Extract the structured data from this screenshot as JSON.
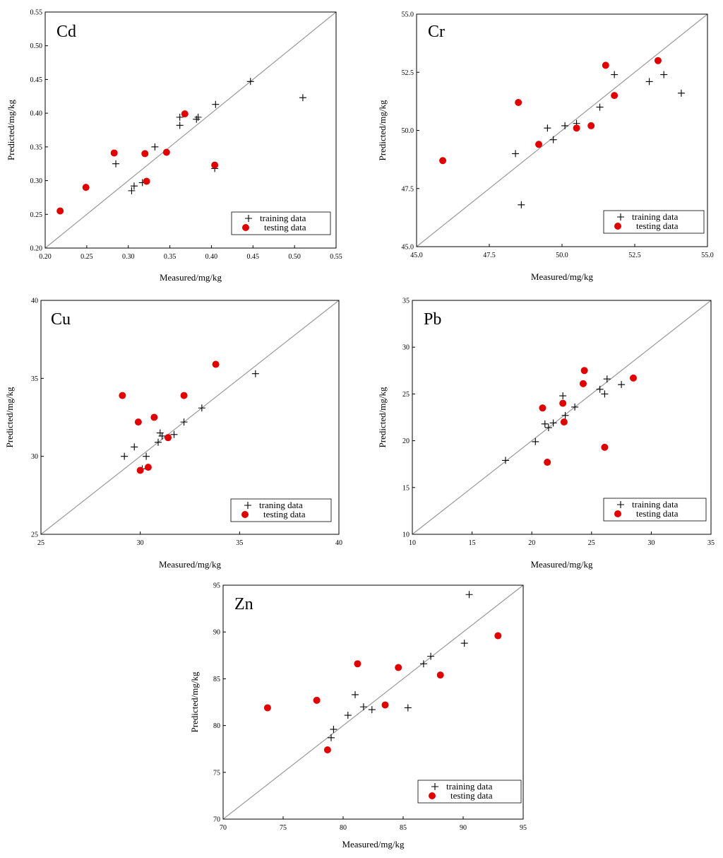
{
  "colors": {
    "testing": "#e00000",
    "training": "#000000",
    "diagonal": "#999999",
    "frame": "#000000"
  },
  "chart_data": [
    {
      "type": "scatter",
      "title": "Cd",
      "xlabel": "Measured/mg/kg",
      "ylabel": "Predicted/mg/kg",
      "xlim": [
        0.2,
        0.55
      ],
      "ylim": [
        0.2,
        0.55
      ],
      "xticks": [
        "0.20",
        "0.25",
        "0.30",
        "0.35",
        "0.40",
        "0.45",
        "0.50",
        "0.55"
      ],
      "yticks": [
        "0.20",
        "0.25",
        "0.30",
        "0.35",
        "0.40",
        "0.45",
        "0.50",
        "0.55"
      ],
      "legend": [
        "training data",
        "testing data"
      ],
      "legend_position": "bottom-right",
      "series": [
        {
          "name": "training data",
          "marker": "plus",
          "points": [
            [
              0.285,
              0.325
            ],
            [
              0.304,
              0.285
            ],
            [
              0.307,
              0.292
            ],
            [
              0.317,
              0.297
            ],
            [
              0.332,
              0.35
            ],
            [
              0.362,
              0.394
            ],
            [
              0.362,
              0.382
            ],
            [
              0.382,
              0.391
            ],
            [
              0.384,
              0.394
            ],
            [
              0.405,
              0.413
            ],
            [
              0.404,
              0.318
            ],
            [
              0.447,
              0.447
            ],
            [
              0.51,
              0.423
            ]
          ]
        },
        {
          "name": "testing data",
          "marker": "circle",
          "points": [
            [
              0.218,
              0.255
            ],
            [
              0.249,
              0.29
            ],
            [
              0.283,
              0.341
            ],
            [
              0.32,
              0.34
            ],
            [
              0.322,
              0.299
            ],
            [
              0.346,
              0.342
            ],
            [
              0.368,
              0.399
            ],
            [
              0.404,
              0.323
            ]
          ]
        }
      ]
    },
    {
      "type": "scatter",
      "title": "Cr",
      "xlabel": "Measured/mg/kg",
      "ylabel": "Predicted/mg/kg",
      "xlim": [
        45,
        55
      ],
      "ylim": [
        45,
        55
      ],
      "xticks": [
        "45.0",
        "47.5",
        "50.0",
        "52.5",
        "55.0"
      ],
      "yticks": [
        "45.0",
        "47.5",
        "50.0",
        "52.5",
        "55.0"
      ],
      "legend": [
        "training data",
        "testing data"
      ],
      "legend_position": "bottom-right",
      "series": [
        {
          "name": "training data",
          "marker": "plus",
          "points": [
            [
              48.4,
              49.0
            ],
            [
              48.6,
              46.8
            ],
            [
              49.5,
              50.1
            ],
            [
              49.7,
              49.6
            ],
            [
              50.1,
              50.2
            ],
            [
              50.5,
              50.3
            ],
            [
              51.3,
              51.0
            ],
            [
              51.8,
              52.4
            ],
            [
              53.0,
              52.1
            ],
            [
              53.5,
              52.4
            ],
            [
              54.1,
              51.6
            ]
          ]
        },
        {
          "name": "testing data",
          "marker": "circle",
          "points": [
            [
              45.9,
              48.7
            ],
            [
              48.5,
              51.2
            ],
            [
              49.2,
              49.4
            ],
            [
              50.5,
              50.1
            ],
            [
              51.0,
              50.2
            ],
            [
              51.5,
              52.8
            ],
            [
              51.8,
              51.5
            ],
            [
              53.3,
              53.0
            ]
          ]
        }
      ]
    },
    {
      "type": "scatter",
      "title": "Cu",
      "xlabel": "Measured/mg/kg",
      "ylabel": "Predicted/mg/kg",
      "xlim": [
        25,
        40
      ],
      "ylim": [
        25,
        40
      ],
      "xticks": [
        "25",
        "30",
        "35",
        "40"
      ],
      "yticks": [
        "25",
        "30",
        "35",
        "40"
      ],
      "legend": [
        "traning data",
        "testing data"
      ],
      "legend_position": "bottom-right",
      "series": [
        {
          "name": "traning data",
          "marker": "plus",
          "points": [
            [
              29.2,
              30.0
            ],
            [
              29.7,
              30.6
            ],
            [
              30.1,
              29.2
            ],
            [
              30.3,
              30.0
            ],
            [
              30.9,
              30.9
            ],
            [
              31.0,
              31.5
            ],
            [
              31.1,
              31.3
            ],
            [
              31.7,
              31.4
            ],
            [
              32.2,
              32.2
            ],
            [
              33.1,
              33.1
            ],
            [
              35.8,
              35.3
            ]
          ]
        },
        {
          "name": "testing data",
          "marker": "circle",
          "points": [
            [
              29.1,
              33.9
            ],
            [
              29.9,
              32.2
            ],
            [
              30.0,
              29.1
            ],
            [
              30.4,
              29.3
            ],
            [
              30.7,
              32.5
            ],
            [
              31.4,
              31.2
            ],
            [
              32.2,
              33.9
            ],
            [
              33.8,
              35.9
            ]
          ]
        }
      ]
    },
    {
      "type": "scatter",
      "title": "Pb",
      "xlabel": "Measured/mg/kg",
      "ylabel": "Predicted/mg/kg",
      "xlim": [
        10,
        35
      ],
      "ylim": [
        10,
        35
      ],
      "xticks": [
        "10",
        "15",
        "20",
        "25",
        "30",
        "35"
      ],
      "yticks": [
        "10",
        "15",
        "20",
        "25",
        "30",
        "35"
      ],
      "legend": [
        "training data",
        "testing data"
      ],
      "legend_position": "bottom-right",
      "series": [
        {
          "name": "training data",
          "marker": "plus",
          "points": [
            [
              17.8,
              17.9
            ],
            [
              20.3,
              19.9
            ],
            [
              21.1,
              21.8
            ],
            [
              21.4,
              21.4
            ],
            [
              21.8,
              21.9
            ],
            [
              22.6,
              24.8
            ],
            [
              22.8,
              22.7
            ],
            [
              23.6,
              23.6
            ],
            [
              25.7,
              25.5
            ],
            [
              26.1,
              25.0
            ],
            [
              26.3,
              26.6
            ],
            [
              27.5,
              26.0
            ]
          ]
        },
        {
          "name": "testing data",
          "marker": "circle",
          "points": [
            [
              20.9,
              23.5
            ],
            [
              21.3,
              17.7
            ],
            [
              22.6,
              24.0
            ],
            [
              22.7,
              22.0
            ],
            [
              24.3,
              26.1
            ],
            [
              24.4,
              27.5
            ],
            [
              26.1,
              19.3
            ],
            [
              28.5,
              26.7
            ]
          ]
        }
      ]
    },
    {
      "type": "scatter",
      "title": "Zn",
      "xlabel": "Measured/mg/kg",
      "ylabel": "Predicted/mg/kg",
      "xlim": [
        70,
        95
      ],
      "ylim": [
        70,
        95
      ],
      "xticks": [
        "70",
        "75",
        "80",
        "85",
        "90",
        "95"
      ],
      "yticks": [
        "70",
        "75",
        "80",
        "85",
        "90",
        "95"
      ],
      "legend": [
        "training data",
        "testing data"
      ],
      "legend_position": "bottom-right",
      "series": [
        {
          "name": "training data",
          "marker": "plus",
          "points": [
            [
              79.0,
              78.7
            ],
            [
              79.2,
              79.6
            ],
            [
              80.4,
              81.1
            ],
            [
              81.0,
              83.3
            ],
            [
              81.7,
              82.0
            ],
            [
              82.4,
              81.7
            ],
            [
              85.4,
              81.9
            ],
            [
              86.7,
              86.6
            ],
            [
              87.3,
              87.4
            ],
            [
              90.1,
              88.8
            ],
            [
              90.5,
              94.0
            ]
          ]
        },
        {
          "name": "testing data",
          "marker": "circle",
          "points": [
            [
              73.7,
              81.9
            ],
            [
              77.8,
              82.7
            ],
            [
              78.7,
              77.4
            ],
            [
              81.2,
              86.6
            ],
            [
              83.5,
              82.2
            ],
            [
              84.6,
              86.2
            ],
            [
              88.1,
              85.4
            ],
            [
              92.9,
              89.6
            ]
          ]
        }
      ]
    }
  ]
}
